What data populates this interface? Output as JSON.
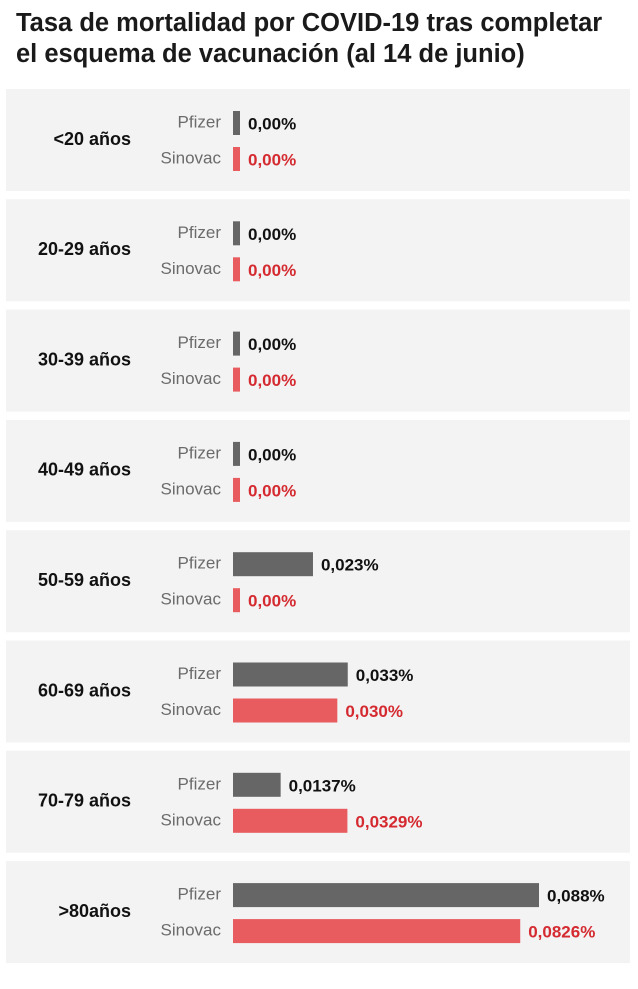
{
  "title": "Tasa de mortalidad por COVID-19 tras completar el esquema de vacunación (al 14 de junio)",
  "colors": {
    "pfizer": "#666666",
    "sinovac": "#e85b5e",
    "sinovac_text": "#d42a30",
    "label_text": "#111111",
    "series_label": "#6b6b6b",
    "row_bg": "#f3f3f3"
  },
  "chart_data": {
    "type": "bar",
    "orientation": "horizontal",
    "title": "Tasa de mortalidad por COVID-19 tras completar el esquema de vacunación (al 14 de junio)",
    "categories": [
      "<20 años",
      "20-29 años",
      "30-39 años",
      "40-49 años",
      "50-59 años",
      "60-69 años",
      "70-79 años",
      ">80años"
    ],
    "series": [
      {
        "name": "Pfizer",
        "values": [
          0,
          0,
          0,
          0,
          0.023,
          0.033,
          0.0137,
          0.088
        ],
        "labels": [
          "0,00%",
          "0,00%",
          "0,00%",
          "0,00%",
          "0,023%",
          "0,033%",
          "0,0137%",
          "0,088%"
        ]
      },
      {
        "name": "Sinovac",
        "values": [
          0,
          0,
          0,
          0,
          0,
          0.03,
          0.0329,
          0.0826
        ],
        "labels": [
          "0,00%",
          "0,00%",
          "0,00%",
          "0,00%",
          "0,00%",
          "0,030%",
          "0,0329%",
          "0,0826%"
        ]
      }
    ],
    "unit": "%",
    "xlim": [
      0,
      0.088
    ],
    "grid": false,
    "legend": "none"
  }
}
